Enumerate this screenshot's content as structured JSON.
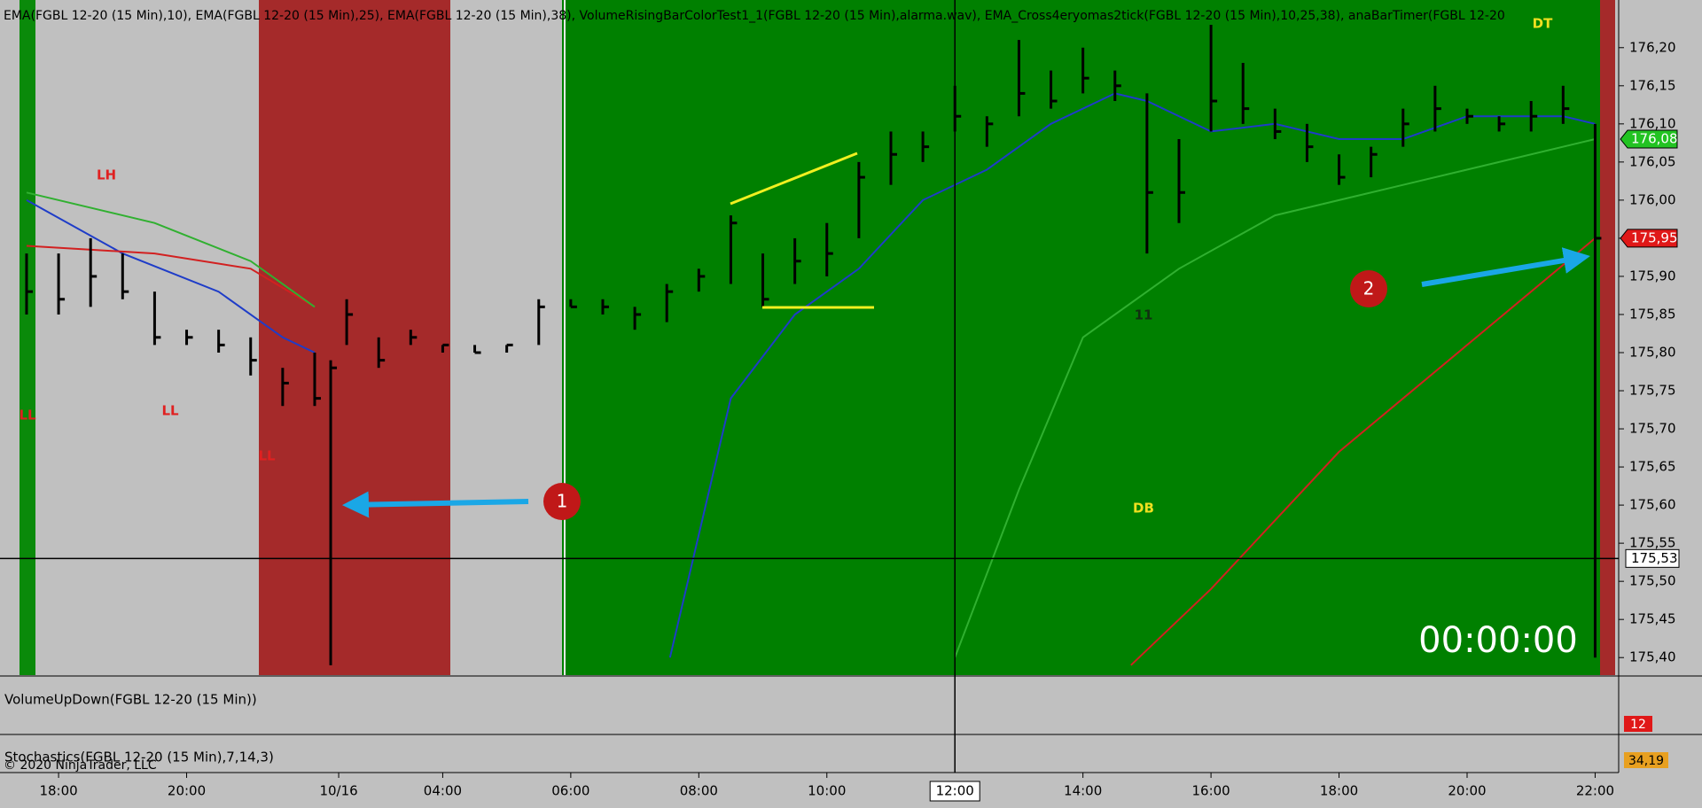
{
  "chart_data": {
    "type": "ohlc",
    "header": "EMA(FGBL 12-20 (15 Min),10), EMA(FGBL 12-20 (15 Min),25), EMA(FGBL 12-20 (15 Min),38), VolumeRisingBarColorTest1_1(FGBL 12-20 (15 Min),alarma.wav), EMA_Cross4eryomas2tick(FGBL 12-20 (15 Min),10,25,38), anaBarTimer(FGBL 12-20",
    "x": [
      -2,
      0,
      2,
      4,
      6,
      8,
      10,
      12,
      14,
      16,
      17,
      18,
      20,
      22,
      24,
      26,
      28,
      30,
      32,
      34,
      36,
      38,
      40,
      42,
      44,
      46,
      48,
      50,
      52,
      54,
      56,
      58,
      60,
      62,
      64,
      66,
      68,
      70,
      72,
      74,
      76,
      78,
      80,
      82,
      84,
      86,
      88,
      90,
      92,
      94,
      96
    ],
    "high": [
      175.93,
      175.93,
      175.95,
      175.93,
      175.88,
      175.83,
      175.83,
      175.82,
      175.78,
      175.8,
      175.79,
      175.87,
      175.82,
      175.83,
      175.81,
      175.81,
      175.81,
      175.87,
      175.87,
      175.87,
      175.86,
      175.89,
      175.91,
      175.98,
      175.93,
      175.95,
      175.97,
      176.05,
      176.09,
      176.09,
      176.15,
      176.11,
      176.21,
      176.17,
      176.2,
      176.17,
      176.14,
      176.08,
      176.23,
      176.18,
      176.12,
      176.1,
      176.06,
      176.07,
      176.12,
      176.15,
      176.12,
      176.11,
      176.13,
      176.15,
      176.1
    ],
    "low": [
      175.85,
      175.85,
      175.86,
      175.87,
      175.81,
      175.81,
      175.8,
      175.77,
      175.73,
      175.73,
      175.39,
      175.81,
      175.78,
      175.81,
      175.8,
      175.8,
      175.8,
      175.81,
      175.86,
      175.85,
      175.83,
      175.84,
      175.88,
      175.89,
      175.86,
      175.89,
      175.9,
      175.95,
      176.02,
      176.05,
      176.09,
      176.07,
      176.11,
      176.12,
      176.14,
      176.13,
      175.93,
      175.97,
      176.09,
      176.1,
      176.08,
      176.05,
      176.02,
      176.03,
      176.07,
      176.09,
      176.1,
      176.09,
      176.09,
      176.1,
      175.4
    ],
    "close": [
      175.88,
      175.87,
      175.9,
      175.88,
      175.82,
      175.82,
      175.81,
      175.79,
      175.76,
      175.74,
      175.78,
      175.85,
      175.79,
      175.82,
      175.81,
      175.8,
      175.81,
      175.86,
      175.86,
      175.86,
      175.85,
      175.88,
      175.9,
      175.97,
      175.87,
      175.92,
      175.93,
      176.03,
      176.06,
      176.07,
      176.11,
      176.1,
      176.14,
      176.13,
      176.16,
      176.15,
      176.01,
      176.01,
      176.13,
      176.12,
      176.09,
      176.07,
      176.03,
      176.06,
      176.1,
      176.12,
      176.11,
      176.1,
      176.11,
      176.12,
      175.95
    ],
    "bar_color": "#000000",
    "lines": [
      {
        "color": "#1e3cc8",
        "x": [
          -2,
          4,
          10,
          14,
          16,
          17,
          38.2,
          42,
          46,
          50,
          54,
          58,
          62,
          66,
          68,
          72,
          76,
          80,
          84,
          88,
          94,
          96
        ],
        "values": [
          176.0,
          175.93,
          175.88,
          175.82,
          175.8,
          null,
          175.4,
          175.74,
          175.85,
          175.91,
          176.0,
          176.04,
          176.1,
          176.14,
          176.13,
          176.09,
          176.1,
          176.08,
          176.08,
          176.11,
          176.11,
          176.1
        ]
      },
      {
        "color": "#d22020",
        "x": [
          -2,
          6,
          12,
          16,
          17,
          67,
          72,
          80,
          88,
          96
        ],
        "values": [
          175.94,
          175.93,
          175.91,
          175.86,
          null,
          175.39,
          175.49,
          175.67,
          175.81,
          175.95
        ]
      },
      {
        "color": "#30b030",
        "x": [
          -2,
          6,
          12,
          16,
          17,
          56,
          60,
          64,
          70,
          76,
          84,
          90,
          96
        ],
        "values": [
          176.01,
          175.97,
          175.92,
          175.86,
          null,
          175.4,
          175.62,
          175.82,
          175.91,
          175.98,
          176.02,
          176.05,
          176.08
        ]
      }
    ],
    "xlim": [
      -3.66,
      97.36
    ],
    "ylim": [
      175.377,
      176.2625
    ],
    "xticks": [
      {
        "value": 0,
        "label": "18:00"
      },
      {
        "value": 8,
        "label": "20:00"
      },
      {
        "value": 17.5,
        "label": "10/16"
      },
      {
        "value": 24,
        "label": "04:00"
      },
      {
        "value": 32,
        "label": "06:00"
      },
      {
        "value": 40,
        "label": "08:00"
      },
      {
        "value": 48,
        "label": "10:00"
      },
      {
        "value": 64,
        "label": "14:00"
      },
      {
        "value": 72,
        "label": "16:00"
      },
      {
        "value": 80,
        "label": "18:00"
      },
      {
        "value": 88,
        "label": "20:00"
      },
      {
        "value": 96,
        "label": "22:00"
      }
    ],
    "yticks": [
      {
        "value": 176.2,
        "label": "176,20"
      },
      {
        "value": 176.15,
        "label": "176,15"
      },
      {
        "value": 176.1,
        "label": "176,10"
      },
      {
        "value": 176.05,
        "label": "176,05"
      },
      {
        "value": 176.0,
        "label": "176,00"
      },
      {
        "value": 175.95,
        "label": "175,95"
      },
      {
        "value": 175.9,
        "label": "175,90"
      },
      {
        "value": 175.85,
        "label": "175,85"
      },
      {
        "value": 175.8,
        "label": "175,80"
      },
      {
        "value": 175.75,
        "label": "175,75"
      },
      {
        "value": 175.7,
        "label": "175,70"
      },
      {
        "value": 175.65,
        "label": "175,65"
      },
      {
        "value": 175.6,
        "label": "175,60"
      },
      {
        "value": 175.55,
        "label": "175,55"
      },
      {
        "value": 175.5,
        "label": "175,50"
      },
      {
        "value": 175.45,
        "label": "175,45"
      },
      {
        "value": 175.4,
        "label": "175,40"
      }
    ],
    "price_markers": [
      {
        "value": 176.08,
        "label": "176,08",
        "color": "#22c322"
      },
      {
        "value": 175.95,
        "label": "175,95",
        "color": "#e01818"
      }
    ],
    "crosshair": {
      "x": 56,
      "x_label": "12:00",
      "y": 175.53,
      "y_label": "175,53"
    },
    "annotations": [
      "LH",
      "LL",
      "LL",
      "LL",
      "DB",
      "11",
      "DT"
    ],
    "timer": "00:00:00",
    "callouts": [
      "1",
      "2"
    ],
    "volume_panel": {
      "title": "VolumeUpDown(FGBL 12-20 (15 Min))",
      "marker": "12"
    },
    "stochastics_panel": {
      "title": "Stochastics(FGBL 12-20 (15 Min),7,14,3)",
      "marker": "34,19"
    },
    "copyright": "© 2020 NinjaTrader, LLC"
  }
}
